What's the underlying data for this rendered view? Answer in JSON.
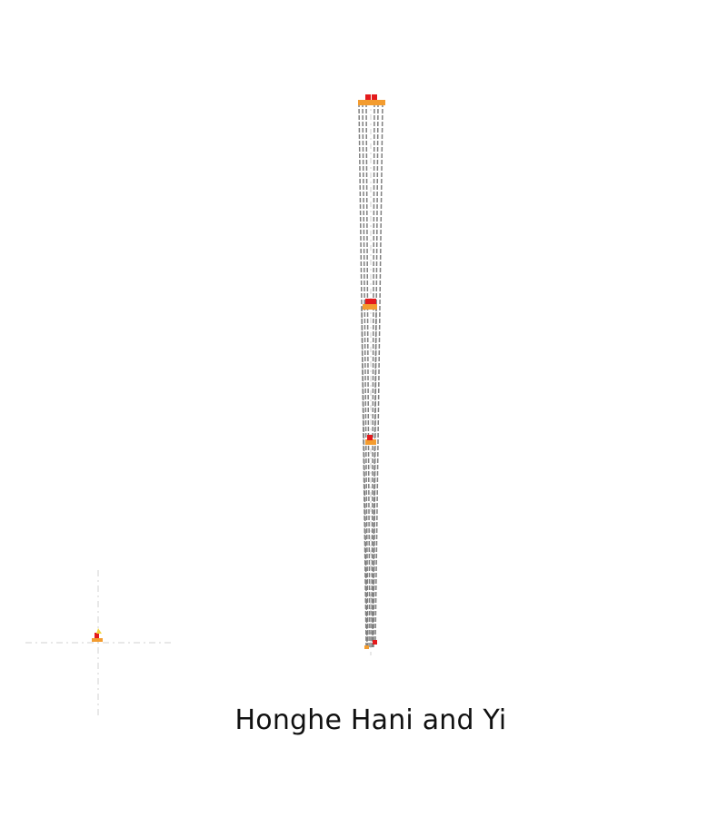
{
  "caption": "Honghe Hani and Yi",
  "colors": {
    "line": "#808080",
    "guide": "#d9d9d9",
    "node_orange": "#f39c2f",
    "node_red": "#e41a1c",
    "node_yellow": "#f2d43d"
  }
}
